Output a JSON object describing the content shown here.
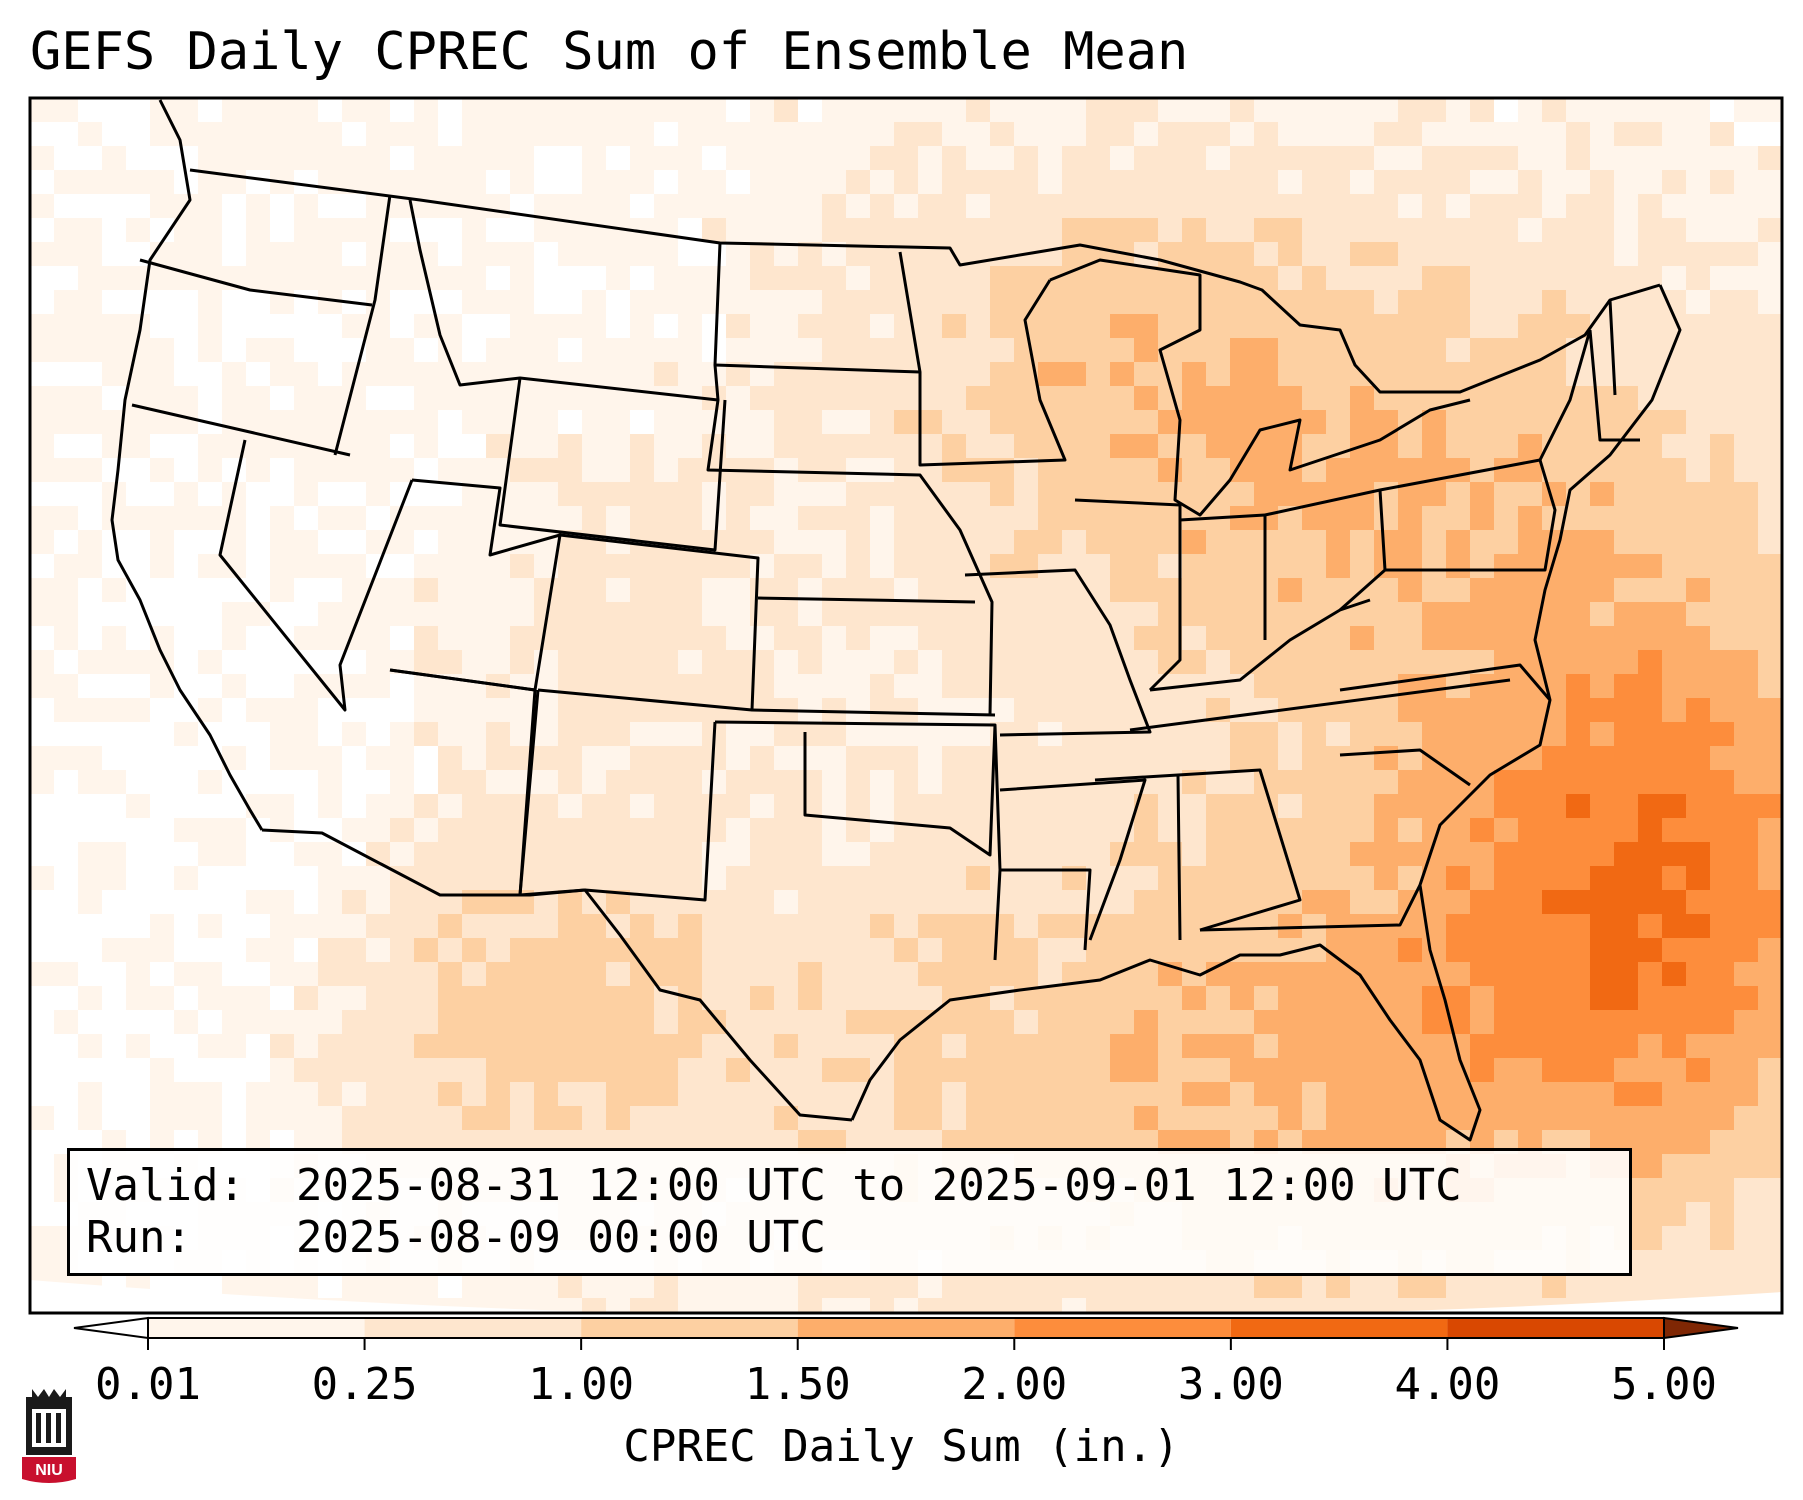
{
  "title": "GEFS Daily CPREC Sum of Ensemble Mean",
  "info": {
    "valid_label": "Valid:",
    "valid_value": "2025-08-31 12:00 UTC to 2025-09-01 12:00 UTC",
    "run_label": "Run:",
    "run_value": "2025-08-09 00:00 UTC"
  },
  "colorbar": {
    "label": "CPREC Daily Sum (in.)",
    "ticks": [
      "0.01",
      "0.25",
      "1.00",
      "1.50",
      "2.00",
      "3.00",
      "4.00",
      "5.00"
    ],
    "colors": [
      "#fff5eb",
      "#fee6ce",
      "#fdd0a2",
      "#fdae6b",
      "#fd8d3c",
      "#f16913",
      "#d94801",
      "#8c2d04"
    ],
    "under_color": "#ffffff",
    "over_color": "#7f2704",
    "extend": "both"
  },
  "map": {
    "projection": "lambert-conformal",
    "region": "CONUS, northern Mexico, Gulf of Mexico, western Atlantic",
    "state_borders": true,
    "coastlines": true
  },
  "logo": {
    "text": "NIU",
    "icon": "niu-castle-logo-icon"
  }
}
